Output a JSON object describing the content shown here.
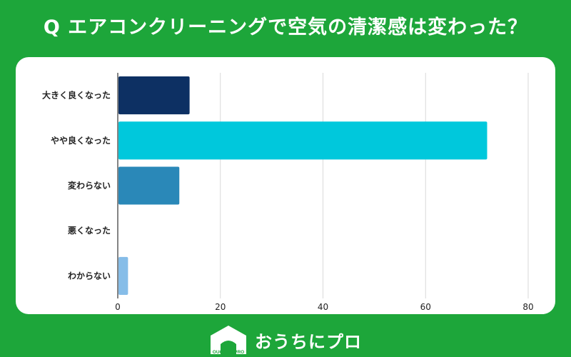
{
  "title": "Q エアコンクリーニングで空気の清潔感は変わった？",
  "chart_data": {
    "type": "bar",
    "orientation": "horizontal",
    "categories": [
      "大きく良くなった",
      "やや良くなった",
      "変わらない",
      "悪くなった",
      "わからない"
    ],
    "values": [
      14,
      72,
      12,
      0,
      2
    ],
    "bar_colors": [
      "#0d3063",
      "#00c8dc",
      "#2a88b8",
      "#2a88b8",
      "#86bde8"
    ],
    "xlim": [
      0,
      80
    ],
    "xticks": [
      0,
      20,
      40,
      60,
      80
    ],
    "grid": true
  },
  "footer": {
    "logo_text": "OUCHI ni PRO",
    "brand": "おうちにプロ"
  }
}
